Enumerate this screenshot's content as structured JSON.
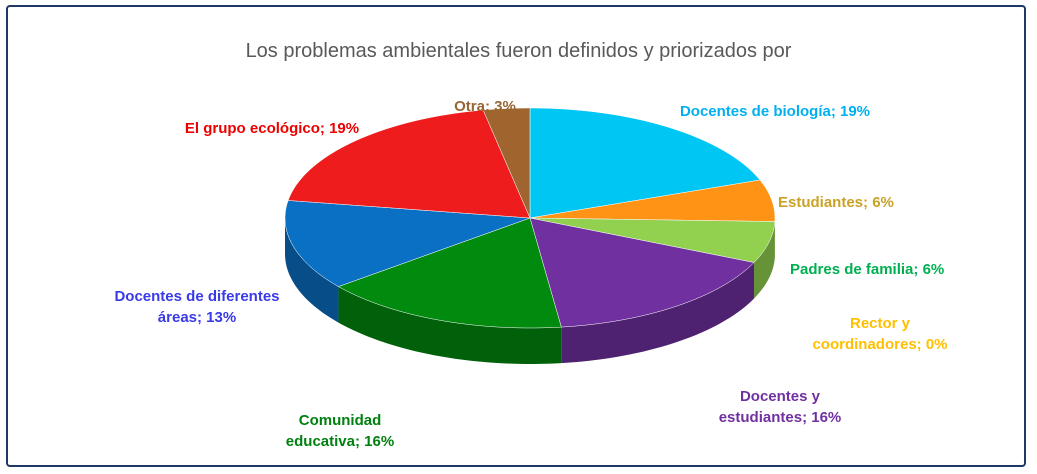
{
  "chart_data": {
    "type": "pie3d",
    "title": "Los problemas ambientales fueron definidos y priorizados por",
    "categories": [
      "Docentes de biología;",
      "Estudiantes;",
      "Padres de familia;",
      "Rector y coordinadores;",
      "Docentes y estudiantes;",
      "Comunidad educativa;",
      "Docentes de diferentes áreas;",
      "El grupo ecológico;",
      "Otra;"
    ],
    "values": [
      19,
      6,
      6,
      0,
      16,
      16,
      13,
      19,
      3
    ],
    "value_labels": [
      "19%",
      "6%",
      "6%",
      "0%",
      "16%",
      "16%",
      "13%",
      "19%",
      "3%"
    ],
    "colors": [
      "#00c6f4",
      "#ff9315",
      "#92d050",
      "#ffc000",
      "#7030a0",
      "#008a0e",
      "#0a70c4",
      "#ee1c1c",
      "#a0652e"
    ],
    "label_colors": [
      "#00b0f0",
      "#c9a227",
      "#00b050",
      "#ffc000",
      "#7030a0",
      "#00800f",
      "#3a3ae8",
      "#ee0000",
      "#996633"
    ]
  }
}
